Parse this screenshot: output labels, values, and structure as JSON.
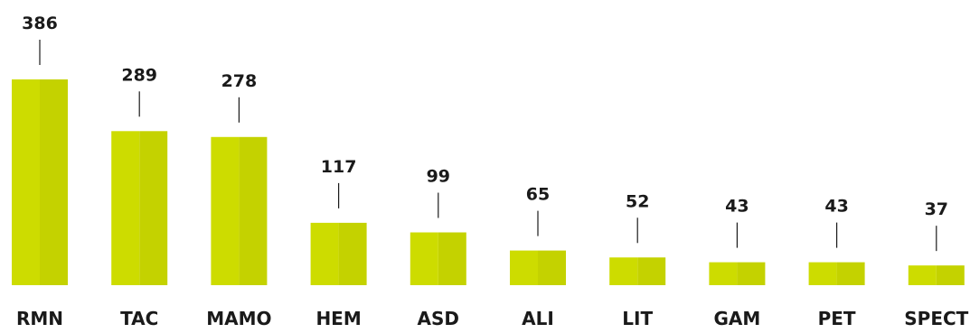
{
  "chart_data": {
    "type": "bar",
    "categories": [
      "RMN",
      "TAC",
      "MAMO",
      "HEM",
      "ASD",
      "ALI",
      "LIT",
      "GAM",
      "PET",
      "SPECT"
    ],
    "values": [
      386,
      289,
      278,
      117,
      99,
      65,
      52,
      43,
      43,
      37
    ],
    "value_labels": [
      "386",
      "289",
      "278",
      "117",
      "99",
      "65",
      "52",
      "43",
      "43",
      "37"
    ],
    "title": "",
    "xlabel": "",
    "ylabel": "",
    "ylim": [
      0,
      386
    ],
    "grid": false,
    "legend": "none",
    "colors": {
      "bar_left": "#cddc00",
      "bar_right": "#c4d200",
      "leader_line": "#1a1a1a",
      "text": "#1a1a1a"
    }
  }
}
